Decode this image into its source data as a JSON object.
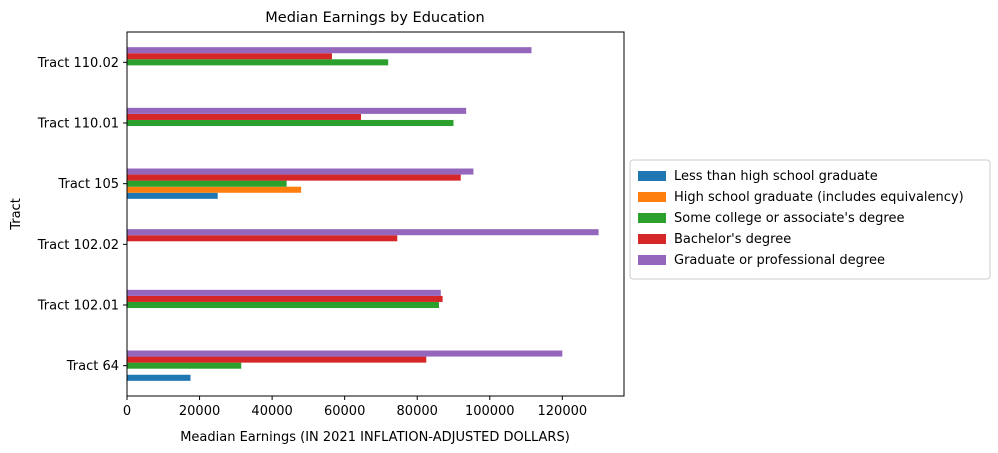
{
  "chart_data": {
    "type": "bar",
    "orientation": "horizontal",
    "title": "Median Earnings by Education",
    "xlabel": "Meadian Earnings (IN 2021 INFLATION-ADJUSTED DOLLARS)",
    "ylabel": "Tract",
    "xlim": [
      0,
      137000
    ],
    "xticks": [
      0,
      20000,
      40000,
      60000,
      80000,
      100000,
      120000
    ],
    "xtick_labels": [
      "0",
      "20000",
      "40000",
      "60000",
      "80000",
      "100000",
      "120000"
    ],
    "categories": [
      "Tract 64",
      "Tract 102.01",
      "Tract 102.02",
      "Tract 105",
      "Tract 110.01",
      "Tract 110.02"
    ],
    "legend_position": "right",
    "grid": false,
    "series": [
      {
        "name": "Less than high school graduate",
        "color": "#1f77b4",
        "values": [
          17500,
          null,
          null,
          25000,
          null,
          null
        ]
      },
      {
        "name": "High school graduate (includes equivalency)",
        "color": "#ff7f0e",
        "values": [
          null,
          null,
          null,
          48000,
          null,
          null
        ]
      },
      {
        "name": "Some college or associate's degree",
        "color": "#2ca02c",
        "values": [
          31500,
          86000,
          null,
          44000,
          90000,
          72000
        ]
      },
      {
        "name": "Bachelor's degree",
        "color": "#d62728",
        "values": [
          82500,
          87000,
          74500,
          92000,
          64500,
          56500
        ]
      },
      {
        "name": "Graduate or professional degree",
        "color": "#9467bd",
        "values": [
          120000,
          86500,
          130000,
          95500,
          93500,
          111500
        ]
      }
    ]
  }
}
